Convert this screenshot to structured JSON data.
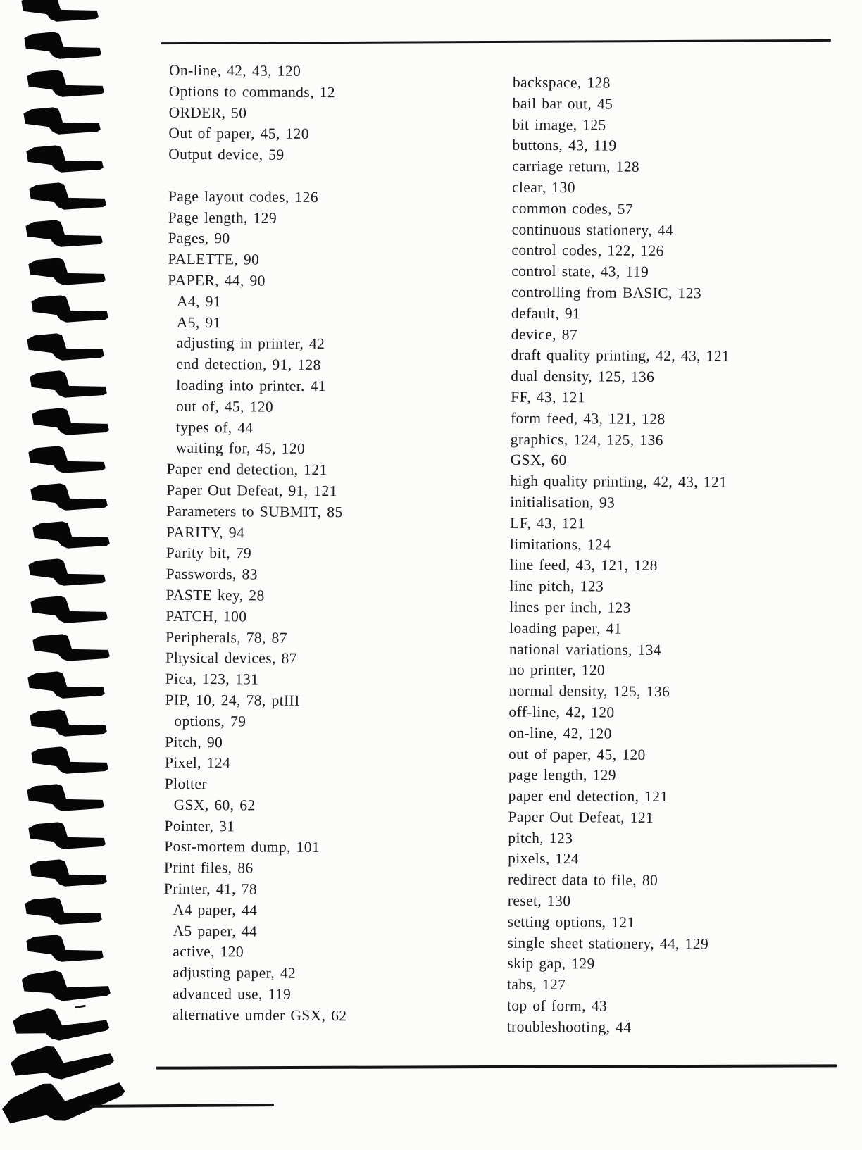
{
  "decor": {
    "ink_color": "#1a1a1a",
    "rule_color": "#151515",
    "binding_mark_color": "#070707",
    "paper_color": "#fcfcfa"
  },
  "index": {
    "columns": [
      {
        "entries": [
          {
            "text": "On-line, 42, 43, 120"
          },
          {
            "text": "Options to commands, 12"
          },
          {
            "text": "ORDER, 50"
          },
          {
            "text": "Out of paper, 45, 120"
          },
          {
            "text": "Output device, 59"
          },
          {
            "spacer": true
          },
          {
            "text": "Page layout codes, 126"
          },
          {
            "text": "Page length, 129"
          },
          {
            "text": "Pages, 90"
          },
          {
            "text": "PALETTE, 90"
          },
          {
            "text": "PAPER, 44, 90"
          },
          {
            "text": "A4, 91",
            "indent": 1
          },
          {
            "text": "A5, 91",
            "indent": 1
          },
          {
            "text": "adjusting in printer, 42",
            "indent": 1
          },
          {
            "text": "end detection, 91, 128",
            "indent": 1
          },
          {
            "text": "loading into printer. 41",
            "indent": 1
          },
          {
            "text": "out of, 45, 120",
            "indent": 1
          },
          {
            "text": "types of, 44",
            "indent": 1
          },
          {
            "text": "waiting for, 45, 120",
            "indent": 1
          },
          {
            "text": "Paper end detection, 121"
          },
          {
            "text": "Paper Out Defeat, 91, 121"
          },
          {
            "text": "Parameters to SUBMIT, 85"
          },
          {
            "text": "PARITY, 94"
          },
          {
            "text": "Parity bit, 79"
          },
          {
            "text": "Passwords, 83"
          },
          {
            "text": "PASTE key, 28"
          },
          {
            "text": "PATCH, 100"
          },
          {
            "text": "Peripherals, 78, 87"
          },
          {
            "text": "Physical devices, 87"
          },
          {
            "text": "Pica, 123, 131"
          },
          {
            "text": "PIP, 10, 24, 78, ptIII"
          },
          {
            "text": "options, 79",
            "indent": 1
          },
          {
            "text": "Pitch, 90"
          },
          {
            "text": "Pixel, 124"
          },
          {
            "text": "Plotter"
          },
          {
            "text": "GSX, 60, 62",
            "indent": 1
          },
          {
            "text": "Pointer, 31"
          },
          {
            "text": "Post-mortem dump, 101"
          },
          {
            "text": "Print files, 86"
          },
          {
            "text": "Printer, 41, 78"
          },
          {
            "text": "A4 paper, 44",
            "indent": 1
          },
          {
            "text": "A5 paper, 44",
            "indent": 1
          },
          {
            "text": "active, 120",
            "indent": 1
          },
          {
            "text": "adjusting paper, 42",
            "indent": 1
          },
          {
            "text": "advanced use, 119",
            "indent": 1
          },
          {
            "text": "alternative umder GSX, 62",
            "indent": 1
          }
        ]
      },
      {
        "entries": [
          {
            "text": "backspace, 128"
          },
          {
            "text": "bail bar out, 45"
          },
          {
            "text": "bit image, 125"
          },
          {
            "text": "buttons, 43, 119"
          },
          {
            "text": "carriage return, 128"
          },
          {
            "text": "clear, 130"
          },
          {
            "text": "common codes, 57"
          },
          {
            "text": "continuous stationery, 44"
          },
          {
            "text": "control codes, 122, 126"
          },
          {
            "text": "control state, 43, 119"
          },
          {
            "text": "controlling from BASIC, 123"
          },
          {
            "text": "default, 91"
          },
          {
            "text": "device, 87"
          },
          {
            "text": "draft quality printing, 42, 43, 121"
          },
          {
            "text": "dual density, 125, 136"
          },
          {
            "text": "FF, 43, 121"
          },
          {
            "text": "form feed, 43, 121, 128"
          },
          {
            "text": "graphics, 124, 125, 136"
          },
          {
            "text": "GSX, 60"
          },
          {
            "text": "high quality printing, 42, 43, 121"
          },
          {
            "text": "initialisation, 93"
          },
          {
            "text": "LF, 43, 121"
          },
          {
            "text": "limitations, 124"
          },
          {
            "text": "line feed, 43, 121, 128"
          },
          {
            "text": "line pitch, 123"
          },
          {
            "text": "lines per inch, 123"
          },
          {
            "text": "loading paper, 41"
          },
          {
            "text": "national variations, 134"
          },
          {
            "text": "no printer, 120"
          },
          {
            "text": "normal density, 125, 136"
          },
          {
            "text": "off-line, 42, 120"
          },
          {
            "text": "on-line, 42, 120"
          },
          {
            "text": "out of paper, 45, 120"
          },
          {
            "text": "page length, 129"
          },
          {
            "text": "paper end detection, 121"
          },
          {
            "text": "Paper Out Defeat, 121"
          },
          {
            "text": "pitch, 123"
          },
          {
            "text": "pixels, 124"
          },
          {
            "text": "redirect data to file, 80"
          },
          {
            "text": "reset, 130"
          },
          {
            "text": "setting options, 121"
          },
          {
            "text": "single sheet stationery, 44, 129"
          },
          {
            "text": "skip gap, 129"
          },
          {
            "text": "tabs, 127"
          },
          {
            "text": "top of form, 43"
          },
          {
            "text": "troubleshooting, 44"
          }
        ]
      }
    ]
  }
}
